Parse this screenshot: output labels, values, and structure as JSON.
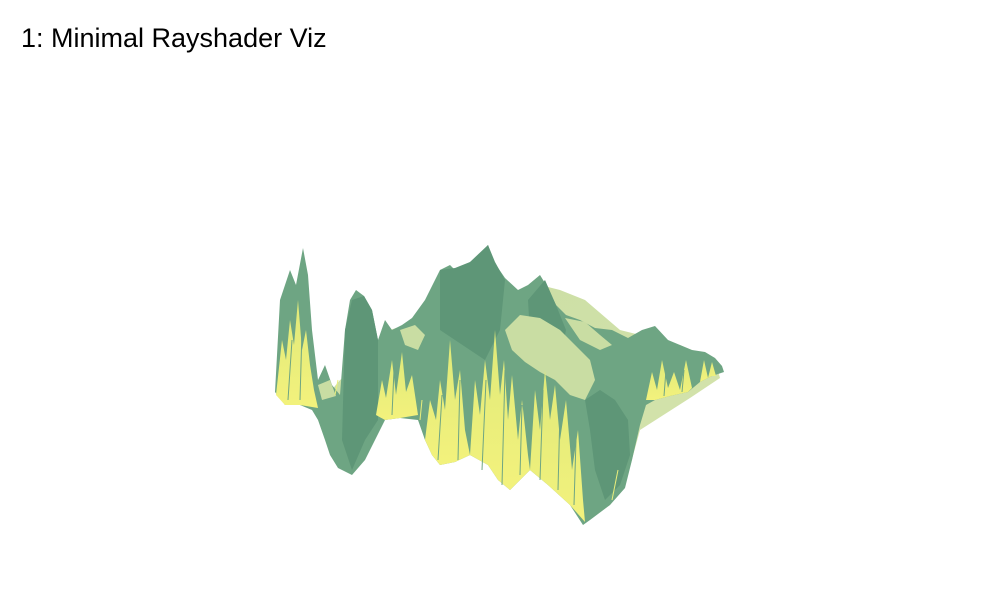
{
  "viz": {
    "title": "1: Minimal Rayshader Viz"
  },
  "colors": {
    "background": "#ffffff",
    "terrain_green": "#6ea583",
    "terrain_green_dark": "#5e9677",
    "terrain_yellow": "#eef07a",
    "terrain_pale": "#cfe0a6",
    "title_text": "#000000"
  }
}
